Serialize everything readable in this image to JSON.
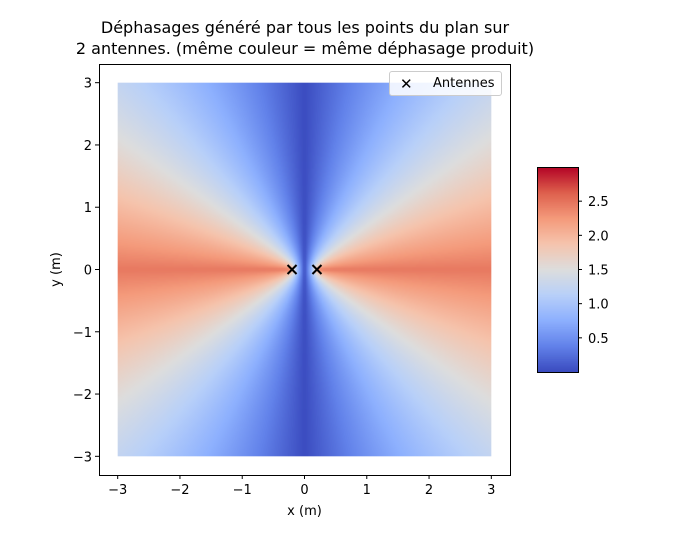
{
  "chart_data": {
    "type": "heatmap",
    "title_lines": [
      "Déphasages généré par tous les points du plan sur",
      "2 antennes. (même couleur = même déphasage produit)"
    ],
    "xlabel": "x (m)",
    "ylabel": "y (m)",
    "xlim": [
      -3.3,
      3.3
    ],
    "ylim": [
      -3.3,
      3.3
    ],
    "field_extent": [
      -3,
      3,
      -3,
      3
    ],
    "xticks": [
      -3,
      -2,
      -1,
      0,
      1,
      2,
      3
    ],
    "yticks": [
      -3,
      -2,
      -1,
      0,
      1,
      2,
      3
    ],
    "tick_labels": [
      "−3",
      "−2",
      "−1",
      "0",
      "1",
      "2",
      "3"
    ],
    "colormap": "coolwarm",
    "color_range": [
      0.0,
      3.0
    ],
    "colorbar_ticks": [
      0.5,
      1.0,
      1.5,
      2.0,
      2.5
    ],
    "colorbar_tick_labels": [
      "0.5",
      "1.0",
      "1.5",
      "2.0",
      "2.5"
    ],
    "antennas": {
      "name": "Antennes",
      "marker": "x",
      "color": "#000000",
      "x": [
        -0.2,
        0.2
      ],
      "y": [
        0,
        0
      ]
    },
    "legend_position": "top-right",
    "grid": false
  },
  "legend": {
    "marker_glyph": "✕",
    "label": "Antennes"
  }
}
